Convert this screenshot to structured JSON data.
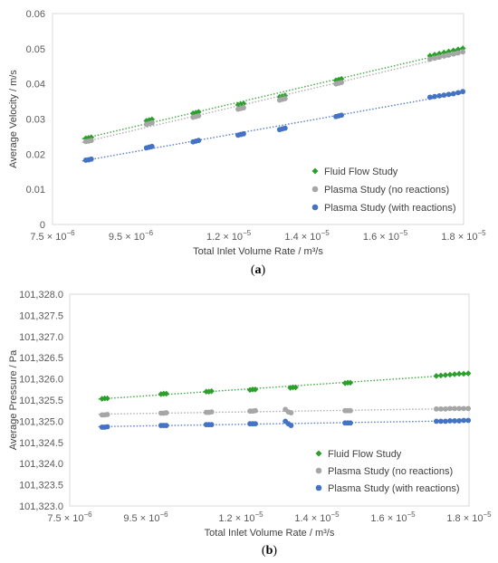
{
  "chart_data": [
    {
      "type": "scatter",
      "caption_open": "(",
      "caption_letter": "a",
      "caption_close": ")",
      "xlabel": "Total Inlet Volume Rate /  m³/s",
      "ylabel": "Average Velocity / m/s",
      "xlim": [
        7.5e-06,
        1.8e-05
      ],
      "ylim": [
        0,
        0.06
      ],
      "xtick_values": [
        7.5e-06,
        9.5e-06,
        1.2e-05,
        1.4e-05,
        1.6e-05,
        1.8e-05
      ],
      "xtick_mantissas": [
        "7.5",
        "9.5",
        "1.2",
        "1.4",
        "1.6",
        "1.8"
      ],
      "xtick_exponents": [
        "−6",
        "−6",
        "−5",
        "−5",
        "−5",
        "−5"
      ],
      "xtick_times": "×",
      "xtick_base": "10",
      "ytick_values": [
        0,
        0.01,
        0.02,
        0.03,
        0.04,
        0.05,
        0.06
      ],
      "ytick_labels": [
        "0",
        "0.01",
        "0.02",
        "0.03",
        "0.04",
        "0.05",
        "0.06"
      ],
      "grid": false,
      "trendlines": "dotted-linear",
      "legend_position": "bottom-right",
      "series": [
        {
          "name": "Fluid Flow Study",
          "color": "#2ca02c",
          "marker": "diamond",
          "x": [
            8.35e-06,
            8.42e-06,
            8.49e-06,
            9.9e-06,
            9.97e-06,
            1.004e-05,
            1.109e-05,
            1.116e-05,
            1.123e-05,
            1.224e-05,
            1.231e-05,
            1.238e-05,
            1.33e-05,
            1.337e-05,
            1.344e-05,
            1.474e-05,
            1.481e-05,
            1.488e-05,
            1.714e-05,
            1.726e-05,
            1.738e-05,
            1.75e-05,
            1.762e-05,
            1.774e-05,
            1.786e-05,
            1.798e-05
          ],
          "y": [
            0.0245,
            0.0246,
            0.0248,
            0.0295,
            0.0297,
            0.0299,
            0.0316,
            0.0318,
            0.032,
            0.034,
            0.0342,
            0.0344,
            0.0363,
            0.0365,
            0.0367,
            0.041,
            0.0412,
            0.0414,
            0.048,
            0.0483,
            0.0486,
            0.0489,
            0.0492,
            0.0495,
            0.0498,
            0.0501
          ]
        },
        {
          "name": "Plasma Study (no reactions)",
          "color": "#a6a6a6",
          "marker": "circle",
          "x": [
            8.35e-06,
            8.42e-06,
            8.49e-06,
            9.9e-06,
            9.97e-06,
            1.004e-05,
            1.109e-05,
            1.116e-05,
            1.123e-05,
            1.224e-05,
            1.231e-05,
            1.238e-05,
            1.33e-05,
            1.337e-05,
            1.344e-05,
            1.474e-05,
            1.481e-05,
            1.488e-05,
            1.714e-05,
            1.726e-05,
            1.738e-05,
            1.75e-05,
            1.762e-05,
            1.774e-05,
            1.786e-05,
            1.798e-05
          ],
          "y": [
            0.0236,
            0.0237,
            0.0239,
            0.0285,
            0.0287,
            0.0289,
            0.0305,
            0.0307,
            0.0309,
            0.0328,
            0.033,
            0.0332,
            0.0354,
            0.0356,
            0.0358,
            0.04,
            0.0402,
            0.0404,
            0.047,
            0.0473,
            0.0476,
            0.0479,
            0.0482,
            0.0485,
            0.0488,
            0.0491
          ]
        },
        {
          "name": "Plasma Study (with reactions)",
          "color": "#4472c4",
          "marker": "circle",
          "x": [
            8.35e-06,
            8.42e-06,
            8.49e-06,
            9.9e-06,
            9.97e-06,
            1.004e-05,
            1.109e-05,
            1.116e-05,
            1.123e-05,
            1.224e-05,
            1.231e-05,
            1.238e-05,
            1.33e-05,
            1.337e-05,
            1.344e-05,
            1.474e-05,
            1.481e-05,
            1.488e-05,
            1.714e-05,
            1.726e-05,
            1.738e-05,
            1.75e-05,
            1.762e-05,
            1.774e-05,
            1.786e-05,
            1.798e-05
          ],
          "y": [
            0.0183,
            0.0184,
            0.0186,
            0.0218,
            0.022,
            0.0222,
            0.0235,
            0.0237,
            0.0239,
            0.0254,
            0.0256,
            0.0258,
            0.027,
            0.0272,
            0.0274,
            0.0307,
            0.0309,
            0.0311,
            0.0362,
            0.0364,
            0.0366,
            0.0368,
            0.037,
            0.0372,
            0.0375,
            0.0378
          ]
        }
      ]
    },
    {
      "type": "scatter",
      "caption_open": "(",
      "caption_letter": "b",
      "caption_close": ")",
      "xlabel": "Total Inlet Volume Rate /  m³/s",
      "ylabel": "Average Pressure / Pa",
      "xlim": [
        7.5e-06,
        1.8e-05
      ],
      "ylim": [
        101323.0,
        101328.0
      ],
      "xtick_values": [
        7.5e-06,
        9.5e-06,
        1.2e-05,
        1.4e-05,
        1.6e-05,
        1.8e-05
      ],
      "xtick_mantissas": [
        "7.5",
        "9.5",
        "1.2",
        "1.4",
        "1.6",
        "1.8"
      ],
      "xtick_exponents": [
        "−6",
        "−6",
        "−5",
        "−5",
        "−5",
        "−5"
      ],
      "xtick_times": "×",
      "xtick_base": "10",
      "ytick_values": [
        101323.0,
        101323.5,
        101324.0,
        101324.5,
        101325.0,
        101325.5,
        101326.0,
        101326.5,
        101327.0,
        101327.5,
        101328.0
      ],
      "ytick_labels": [
        "101,323.0",
        "101,323.5",
        "101,324.0",
        "101,324.5",
        "101,325.0",
        "101,325.5",
        "101,326.0",
        "101,326.5",
        "101,327.0",
        "101,327.5",
        "101,328.0"
      ],
      "grid": false,
      "trendlines": "dotted-linear",
      "legend_position": "bottom-right",
      "series": [
        {
          "name": "Fluid Flow Study",
          "color": "#2ca02c",
          "marker": "diamond",
          "x": [
            8.35e-06,
            8.42e-06,
            8.49e-06,
            9.9e-06,
            9.97e-06,
            1.004e-05,
            1.109e-05,
            1.116e-05,
            1.123e-05,
            1.224e-05,
            1.231e-05,
            1.238e-05,
            1.33e-05,
            1.337e-05,
            1.344e-05,
            1.474e-05,
            1.481e-05,
            1.488e-05,
            1.714e-05,
            1.726e-05,
            1.738e-05,
            1.75e-05,
            1.762e-05,
            1.774e-05,
            1.786e-05,
            1.798e-05
          ],
          "y": [
            101325.53,
            101325.54,
            101325.54,
            101325.64,
            101325.65,
            101325.65,
            101325.7,
            101325.7,
            101325.71,
            101325.74,
            101325.75,
            101325.75,
            101325.79,
            101325.8,
            101325.8,
            101325.9,
            101325.91,
            101325.91,
            101326.07,
            101326.08,
            101326.09,
            101326.1,
            101326.11,
            101326.12,
            101326.12,
            101326.13
          ]
        },
        {
          "name": "Plasma Study (no reactions)",
          "color": "#a6a6a6",
          "marker": "circle",
          "x": [
            8.35e-06,
            8.42e-06,
            8.49e-06,
            9.9e-06,
            9.97e-06,
            1.004e-05,
            1.109e-05,
            1.116e-05,
            1.123e-05,
            1.224e-05,
            1.231e-05,
            1.238e-05,
            1.317e-05,
            1.325e-05,
            1.332e-05,
            1.474e-05,
            1.481e-05,
            1.488e-05,
            1.714e-05,
            1.726e-05,
            1.738e-05,
            1.75e-05,
            1.762e-05,
            1.774e-05,
            1.786e-05,
            1.798e-05
          ],
          "y": [
            101325.15,
            101325.15,
            101325.16,
            101325.19,
            101325.19,
            101325.2,
            101325.21,
            101325.21,
            101325.22,
            101325.24,
            101325.24,
            101325.25,
            101325.28,
            101325.22,
            101325.2,
            101325.25,
            101325.25,
            101325.25,
            101325.29,
            101325.29,
            101325.29,
            101325.3,
            101325.3,
            101325.3,
            101325.3,
            101325.3
          ]
        },
        {
          "name": "Plasma Study (with reactions)",
          "color": "#4472c4",
          "marker": "circle",
          "x": [
            8.35e-06,
            8.42e-06,
            8.49e-06,
            9.9e-06,
            9.97e-06,
            1.004e-05,
            1.109e-05,
            1.116e-05,
            1.123e-05,
            1.224e-05,
            1.231e-05,
            1.238e-05,
            1.317e-05,
            1.325e-05,
            1.332e-05,
            1.474e-05,
            1.481e-05,
            1.488e-05,
            1.714e-05,
            1.726e-05,
            1.738e-05,
            1.75e-05,
            1.762e-05,
            1.774e-05,
            1.786e-05,
            1.798e-05
          ],
          "y": [
            101324.86,
            101324.86,
            101324.87,
            101324.9,
            101324.9,
            101324.9,
            101324.92,
            101324.92,
            101324.92,
            101324.94,
            101324.94,
            101324.94,
            101325.0,
            101324.94,
            101324.9,
            101324.96,
            101324.96,
            101324.96,
            101325.0,
            101325.0,
            101325.0,
            101325.01,
            101325.01,
            101325.01,
            101325.02,
            101325.02
          ]
        }
      ]
    }
  ]
}
